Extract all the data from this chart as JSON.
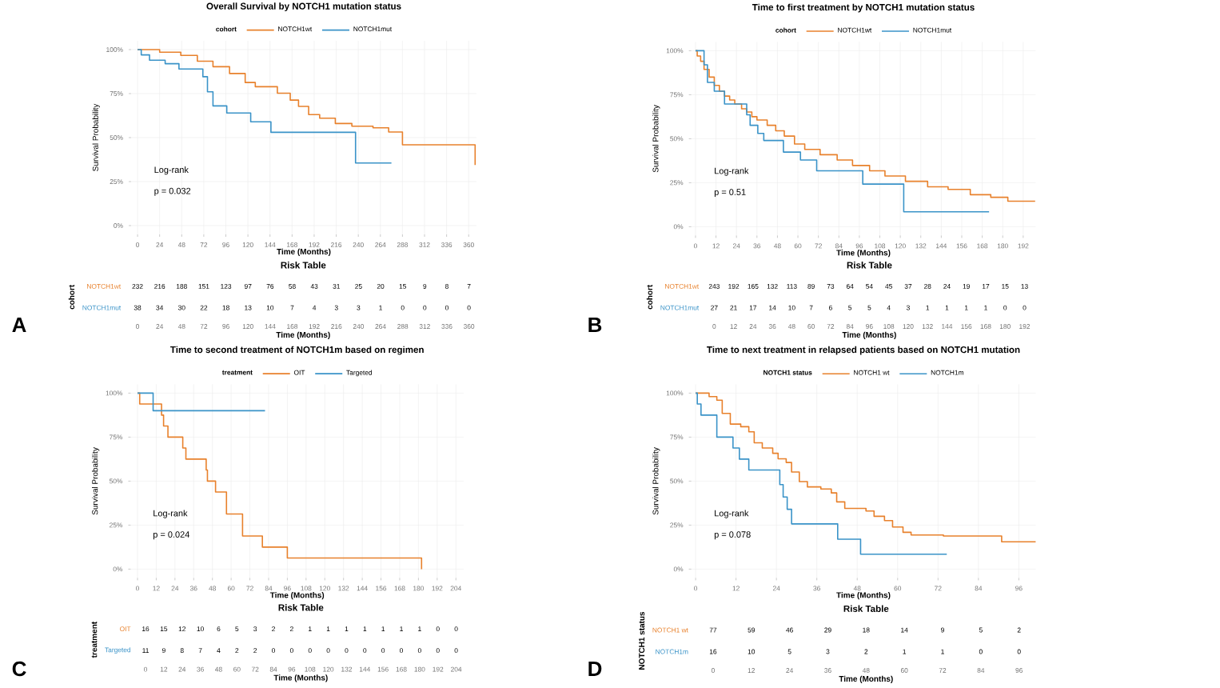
{
  "chart_data": [
    {
      "type": "step",
      "title": "Overall Survival by NOTCH1 mutation status",
      "legend_title": "cohort",
      "xlabel": "Time (Months)",
      "ylabel": "Survival Probability",
      "xlim": [
        -7,
        368.5
      ],
      "xticks": [
        0,
        24,
        48,
        72,
        96,
        120,
        144,
        168,
        192,
        216,
        240,
        264,
        288,
        312,
        336,
        360
      ],
      "ylim": [
        -5,
        105
      ],
      "yticks": [
        {
          "value": 0,
          "label": "0%"
        },
        {
          "value": 25,
          "label": "25%"
        },
        {
          "value": 50,
          "label": "50%"
        },
        {
          "value": 75,
          "label": "75%"
        },
        {
          "value": 100,
          "label": "100%"
        }
      ],
      "grid": true,
      "legend": "top",
      "annotations": [
        "Log-rank",
        "p = 0.032",
        "A"
      ],
      "series": [
        {
          "name": "NOTCH1wt",
          "color": "#e8812c",
          "x": [
            0,
            24,
            47,
            65,
            82,
            100,
            117,
            128,
            152,
            166,
            175,
            186,
            198,
            215,
            233,
            256,
            273,
            288,
            367
          ],
          "values": [
            100,
            98.5,
            96.7,
            93.4,
            90.3,
            86.4,
            81.3,
            78.9,
            75.2,
            71.3,
            67.7,
            63.1,
            61,
            58,
            56.5,
            55.6,
            53.2,
            45.9,
            34.4
          ]
        },
        {
          "name": "NOTCH1mut",
          "color": "#3a93c8",
          "x": [
            0,
            4,
            13,
            30,
            45,
            71,
            76,
            82,
            97,
            123,
            145,
            237,
            276
          ],
          "values": [
            100,
            97,
            94,
            92,
            89,
            84.6,
            76,
            68,
            64,
            59,
            53,
            35.6,
            35.6
          ]
        }
      ]
    },
    {
      "type": "heatmap",
      "title": "Risk Table",
      "xlabel": "Time (Months)",
      "ylabel": "cohort",
      "categories": [
        "0",
        "24",
        "48",
        "72",
        "96",
        "120",
        "144",
        "168",
        "192",
        "216",
        "240",
        "264",
        "288",
        "312",
        "336",
        "360"
      ],
      "y_categories": [
        "NOTCH1wt",
        "NOTCH1mut"
      ],
      "data_labels": true,
      "cells": [
        [
          232,
          216,
          188,
          151,
          123,
          97,
          76,
          58,
          43,
          31,
          25,
          20,
          15,
          9,
          8,
          7
        ],
        [
          38,
          34,
          30,
          22,
          18,
          13,
          10,
          7,
          4,
          3,
          3,
          1,
          0,
          0,
          0,
          0
        ]
      ]
    },
    {
      "type": "step",
      "title": "Time to first treatment by NOTCH1 mutation status",
      "legend_title": "cohort",
      "xlabel": "Time (Months)",
      "ylabel": "Survival Probability",
      "xlim": [
        -2.5,
        199.3
      ],
      "xticks": [
        0,
        12,
        24,
        36,
        48,
        60,
        72,
        84,
        96,
        108,
        120,
        132,
        144,
        156,
        168,
        180,
        192
      ],
      "ylim": [
        -5,
        105
      ],
      "yticks": [
        {
          "value": 0,
          "label": "0%"
        },
        {
          "value": 25,
          "label": "25%"
        },
        {
          "value": 50,
          "label": "50%"
        },
        {
          "value": 75,
          "label": "75%"
        },
        {
          "value": 100,
          "label": "100%"
        }
      ],
      "grid": true,
      "legend": "top",
      "annotations": [
        "Log-rank",
        "p = 0.51",
        "B"
      ],
      "series": [
        {
          "name": "NOTCH1wt",
          "color": "#e8812c",
          "x": [
            0,
            1,
            3,
            5,
            8,
            11,
            14,
            17,
            20,
            23,
            27,
            30,
            33,
            36,
            42,
            47,
            52,
            58,
            64,
            73,
            83,
            92,
            102,
            111,
            123,
            136,
            148,
            161,
            173,
            183,
            199
          ],
          "values": [
            100,
            97,
            94,
            89.4,
            85,
            80.3,
            77,
            74.2,
            72,
            69.7,
            67,
            65.2,
            62.5,
            60.6,
            57.6,
            54.5,
            51.5,
            47,
            43.9,
            40.9,
            37.9,
            34.8,
            31.8,
            28.8,
            25.8,
            22.7,
            21.2,
            18.2,
            16.7,
            14.5,
            14.5
          ]
        },
        {
          "name": "NOTCH1mut",
          "color": "#3a93c8",
          "x": [
            0,
            5,
            7,
            11,
            17,
            30,
            32,
            36.5,
            40,
            51.5,
            61.5,
            71,
            98,
            122,
            172
          ],
          "values": [
            100,
            92,
            82,
            77,
            69.7,
            63.6,
            57.6,
            53,
            49,
            42.4,
            37.9,
            31.8,
            24.2,
            8.5,
            8.5
          ]
        }
      ]
    },
    {
      "type": "heatmap",
      "title": "Risk Table",
      "xlabel": "Time (Months)",
      "ylabel": "cohort",
      "categories": [
        "0",
        "12",
        "24",
        "36",
        "48",
        "60",
        "72",
        "84",
        "96",
        "108",
        "120",
        "132",
        "144",
        "156",
        "168",
        "180",
        "192"
      ],
      "y_categories": [
        "NOTCH1wt",
        "NOTCH1mut"
      ],
      "data_labels": true,
      "cells": [
        [
          243,
          192,
          165,
          132,
          113,
          89,
          73,
          64,
          54,
          45,
          37,
          28,
          24,
          19,
          17,
          15,
          13
        ],
        [
          27,
          21,
          17,
          14,
          10,
          7,
          6,
          5,
          5,
          4,
          3,
          1,
          1,
          1,
          1,
          0,
          0
        ]
      ]
    },
    {
      "type": "step",
      "title": "Time to second treatment of NOTCH1m based on regimen",
      "legend_title": "treatment",
      "xlabel": "Time (Months)",
      "ylabel": "Survival Probability",
      "xlim": [
        -4.4,
        209
      ],
      "xticks": [
        0,
        12,
        24,
        36,
        48,
        60,
        72,
        84,
        96,
        108,
        120,
        132,
        144,
        156,
        168,
        180,
        192,
        204
      ],
      "ylim": [
        -5,
        105
      ],
      "yticks": [
        {
          "value": 0,
          "label": "0%"
        },
        {
          "value": 25,
          "label": "25%"
        },
        {
          "value": 50,
          "label": "50%"
        },
        {
          "value": 75,
          "label": "75%"
        },
        {
          "value": 100,
          "label": "100%"
        }
      ],
      "grid": true,
      "legend": "top",
      "annotations": [
        "Log-rank",
        "p = 0.024",
        "C"
      ],
      "series": [
        {
          "name": "OIT",
          "color": "#e8812c",
          "x": [
            0,
            1.4,
            15.4,
            16.7,
            19.5,
            29,
            31,
            44,
            44.8,
            50,
            57,
            67.3,
            80,
            96,
            182
          ],
          "values": [
            100,
            93.8,
            87.5,
            81.3,
            75,
            68.8,
            62.5,
            56.3,
            50,
            43.8,
            31.3,
            18.8,
            12.5,
            6.3,
            0
          ]
        },
        {
          "name": "Targeted",
          "color": "#3a93c8",
          "x": [
            0,
            10,
            81.7
          ],
          "values": [
            100,
            90,
            90
          ]
        }
      ]
    },
    {
      "type": "heatmap",
      "title": "Risk Table",
      "xlabel": "Time (Months)",
      "ylabel": "treatment",
      "categories": [
        "0",
        "12",
        "24",
        "36",
        "48",
        "60",
        "72",
        "84",
        "96",
        "108",
        "120",
        "132",
        "144",
        "156",
        "168",
        "180",
        "192",
        "204"
      ],
      "y_categories": [
        "OIT",
        "Targeted"
      ],
      "data_labels": true,
      "cells": [
        [
          16,
          15,
          12,
          10,
          6,
          5,
          3,
          2,
          2,
          1,
          1,
          1,
          1,
          1,
          1,
          1,
          0,
          0
        ],
        [
          11,
          9,
          8,
          7,
          4,
          2,
          2,
          0,
          0,
          0,
          0,
          0,
          0,
          0,
          0,
          0,
          0,
          0
        ]
      ]
    },
    {
      "type": "step",
      "title": "Time to next treatment in relapsed patients based on NOTCH1 mutation",
      "legend_title": "NOTCH1 status",
      "xlabel": "Time (Months)",
      "ylabel": "Survival Probability",
      "xlim": [
        -1.3,
        101
      ],
      "xticks": [
        0,
        12,
        24,
        36,
        48,
        60,
        72,
        84,
        96
      ],
      "ylim": [
        -5,
        105
      ],
      "yticks": [
        {
          "value": 0,
          "label": "0%"
        },
        {
          "value": 25,
          "label": "25%"
        },
        {
          "value": 50,
          "label": "50%"
        },
        {
          "value": 75,
          "label": "75%"
        },
        {
          "value": 100,
          "label": "100%"
        }
      ],
      "grid": true,
      "legend": "top",
      "annotations": [
        "Log-rank",
        "p = 0.078",
        "D"
      ],
      "series": [
        {
          "name": "NOTCH1 wt",
          "color": "#e8812c",
          "x": [
            0,
            4,
            6.3,
            7.9,
            10.3,
            13.4,
            15.8,
            17.4,
            19.8,
            22.9,
            24.5,
            26.9,
            28.5,
            30.8,
            33.2,
            37.2,
            40.3,
            41.9,
            44.3,
            50.6,
            53,
            56.1,
            58.5,
            61.6,
            64,
            73.6,
            90.9,
            101
          ],
          "values": [
            100,
            98,
            96,
            88.5,
            82.4,
            80.9,
            78,
            71.8,
            68.8,
            65.8,
            62.7,
            60.6,
            55.2,
            49.7,
            46.7,
            45.5,
            43.3,
            38.2,
            34.5,
            33,
            30,
            27.6,
            23.9,
            20.9,
            19.4,
            18.8,
            15.5,
            15.5
          ]
        },
        {
          "name": "NOTCH1m",
          "color": "#3a93c8",
          "x": [
            0,
            0.5,
            1.6,
            6.3,
            11.1,
            13,
            15.8,
            25,
            26,
            27.2,
            28.5,
            42.2,
            49,
            74.6
          ],
          "values": [
            100,
            93.8,
            87.5,
            75,
            68.8,
            62.5,
            56.3,
            48,
            41,
            34,
            25.7,
            17,
            8.5,
            8.5
          ]
        }
      ]
    },
    {
      "type": "heatmap",
      "title": "Risk Table",
      "xlabel": "Time (Months)",
      "ylabel": "NOTCH1 status",
      "categories": [
        "0",
        "12",
        "24",
        "36",
        "48",
        "60",
        "72",
        "84",
        "96"
      ],
      "y_categories": [
        "NOTCH1 wt",
        "NOTCH1m"
      ],
      "data_labels": true,
      "cells": [
        [
          77,
          59,
          46,
          29,
          18,
          14,
          9,
          5,
          2
        ],
        [
          16,
          10,
          5,
          3,
          2,
          1,
          1,
          0,
          0
        ]
      ]
    }
  ]
}
